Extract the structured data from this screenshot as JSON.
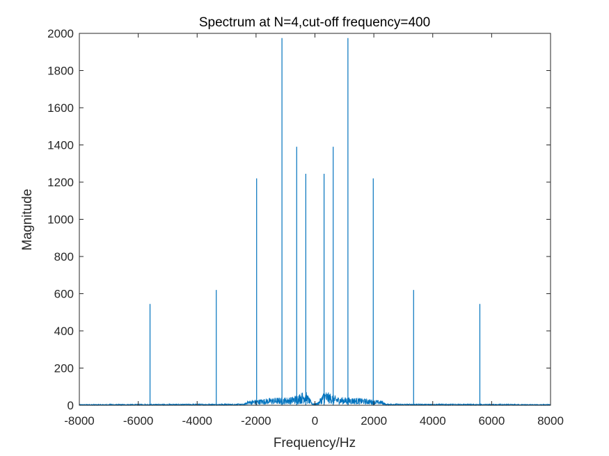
{
  "chart_data": {
    "type": "line",
    "title": "Spectrum at N=4,cut-off frequency=400",
    "xlabel": "Frequency/Hz",
    "ylabel": "Magnitude",
    "xlim": [
      -8000,
      8000
    ],
    "ylim": [
      0,
      2000
    ],
    "xticks": [
      -8000,
      -6000,
      -4000,
      -2000,
      0,
      2000,
      4000,
      6000,
      8000
    ],
    "yticks": [
      0,
      200,
      400,
      600,
      800,
      1000,
      1200,
      1400,
      1600,
      1800,
      2000
    ],
    "grid": false,
    "box": true,
    "line_color": "#0072BD",
    "series": [
      {
        "peaks": [
          {
            "x": -5600,
            "y": 545
          },
          {
            "x": -3350,
            "y": 620
          },
          {
            "x": -1980,
            "y": 1220
          },
          {
            "x": -1120,
            "y": 1975
          },
          {
            "x": -620,
            "y": 1390
          },
          {
            "x": -310,
            "y": 1245
          },
          {
            "x": 310,
            "y": 1245
          },
          {
            "x": 620,
            "y": 1390
          },
          {
            "x": 1120,
            "y": 1975
          },
          {
            "x": 1980,
            "y": 1220
          },
          {
            "x": 3350,
            "y": 620
          },
          {
            "x": 5600,
            "y": 545
          }
        ],
        "noise_floor": [
          {
            "x": -8000,
            "y": 5
          },
          {
            "x": -2400,
            "y": 8
          },
          {
            "x": -2300,
            "y": 25
          },
          {
            "x": -1500,
            "y": 40
          },
          {
            "x": -800,
            "y": 45
          },
          {
            "x": -320,
            "y": 80
          },
          {
            "x": -100,
            "y": 15
          },
          {
            "x": 0,
            "y": 10
          },
          {
            "x": 100,
            "y": 15
          },
          {
            "x": 320,
            "y": 80
          },
          {
            "x": 800,
            "y": 45
          },
          {
            "x": 1500,
            "y": 40
          },
          {
            "x": 2300,
            "y": 25
          },
          {
            "x": 2400,
            "y": 8
          },
          {
            "x": 8000,
            "y": 5
          }
        ]
      }
    ]
  }
}
